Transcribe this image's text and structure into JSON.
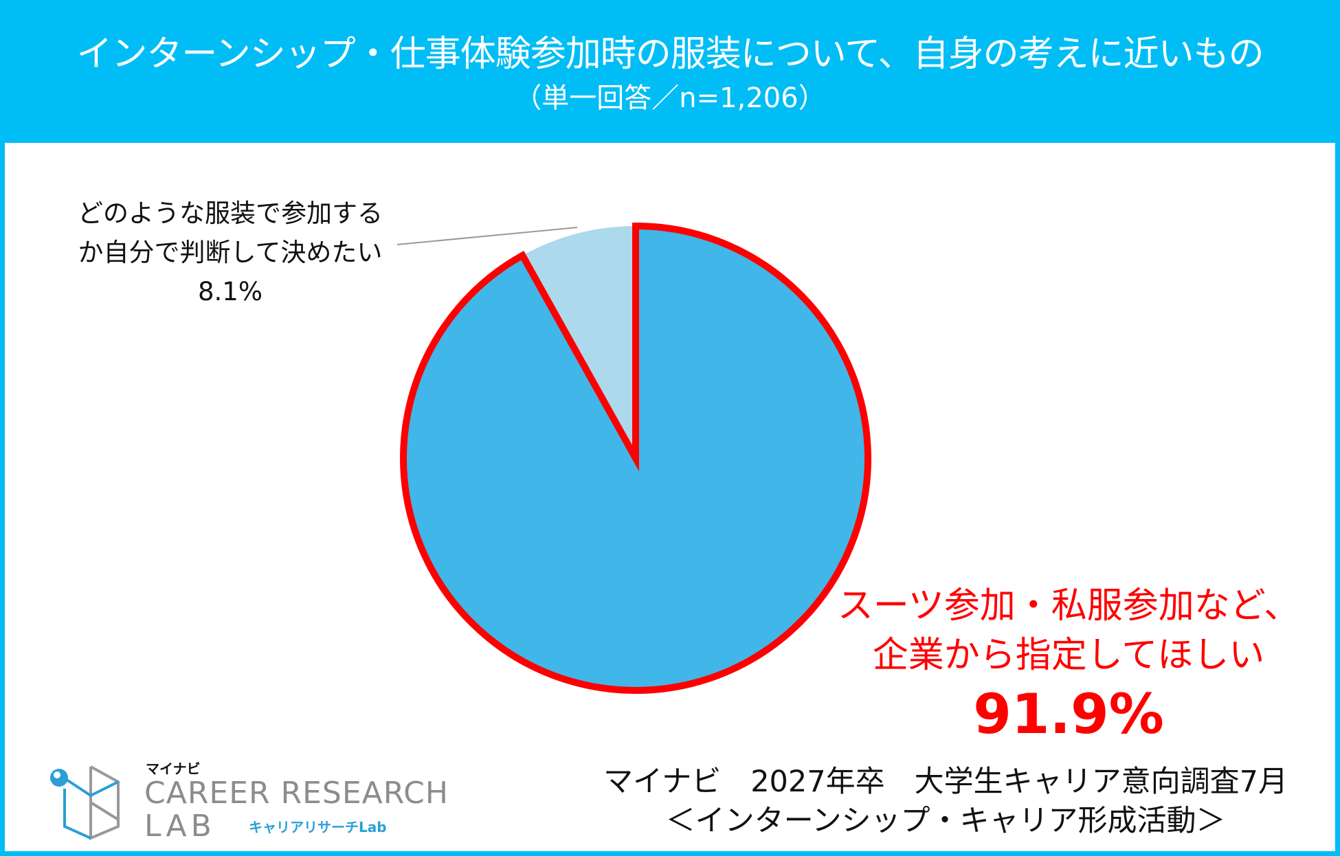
{
  "header": {
    "title": "インターンシップ・仕事体験参加時の服装について、自身の考えに近いもの",
    "subtitle": "（単一回答／n=1,206）"
  },
  "chart_data": {
    "type": "pie",
    "title": "インターンシップ・仕事体験参加時の服装について、自身の考えに近いもの",
    "subtitle": "（単一回答／n=1,206）",
    "slices": [
      {
        "label_lines": [
          "スーツ参加・私服参加など、",
          "企業から指定してほしい"
        ],
        "value": 91.9,
        "value_label": "91.9%",
        "color": "#41b6e9",
        "highlight_color": "#ff0000"
      },
      {
        "label_lines": [
          "どのような服装で参加する",
          "か自分で判断して決めたい"
        ],
        "value": 8.1,
        "value_label": "8.1%",
        "color": "#acd9ec"
      }
    ],
    "start": "12 o'clock",
    "direction": "clockwise"
  },
  "source": {
    "line1": "マイナビ　2027年卒　大学生キャリア意向調査7月",
    "line2": "＜インターンシップ・キャリア形成活動＞"
  },
  "logo": {
    "brand": "マイナビ",
    "name_line1": "CAREER RESEARCH",
    "name_line2": "LAB",
    "name_jp": "キャリアリサーチLab"
  },
  "colors": {
    "header": "#00bdf5",
    "accent": "#ff0000"
  }
}
